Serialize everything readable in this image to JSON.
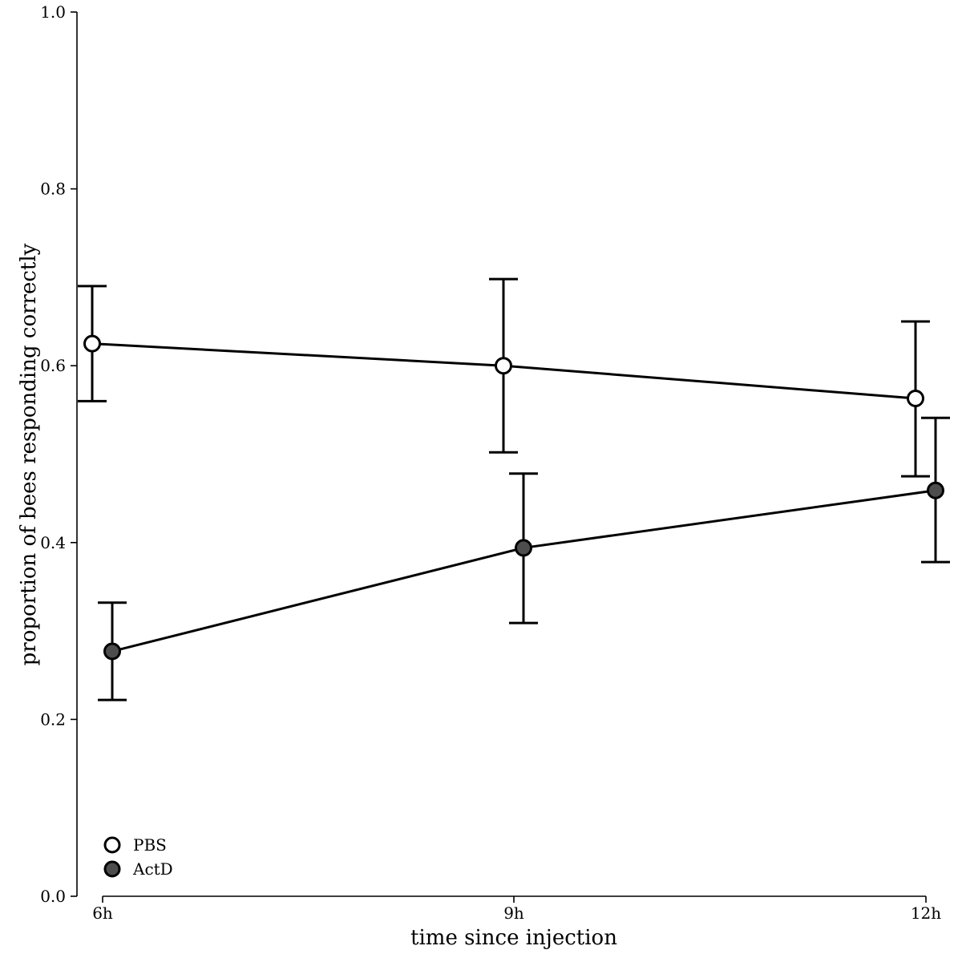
{
  "chart_data": {
    "type": "line",
    "title": "",
    "xlabel": "time since injection",
    "ylabel": "proportion of bees responding correctly",
    "categories": [
      "6h",
      "9h",
      "12h"
    ],
    "ylim": [
      0.0,
      1.0
    ],
    "yticks": [
      "0.0",
      "0.2",
      "0.4",
      "0.6",
      "0.8",
      "1.0"
    ],
    "legend_position": "bottom-left",
    "series": [
      {
        "name": "PBS",
        "marker_fill": "#ffffff",
        "values": [
          0.625,
          0.6,
          0.563
        ],
        "lower": [
          0.56,
          0.502,
          0.475
        ],
        "upper": [
          0.69,
          0.698,
          0.65
        ]
      },
      {
        "name": "ActD",
        "marker_fill": "#4d4d4d",
        "values": [
          0.277,
          0.394,
          0.459
        ],
        "lower": [
          0.222,
          0.309,
          0.378
        ],
        "upper": [
          0.332,
          0.478,
          0.541
        ]
      }
    ]
  }
}
